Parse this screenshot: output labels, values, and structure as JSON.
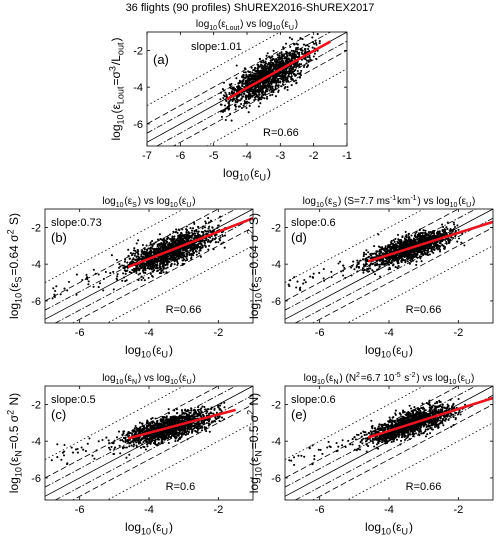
{
  "figure": {
    "suptitle": "36  flights (90 profiles) ShUREX2016-ShUREX2017"
  },
  "colors": {
    "points": "#000000",
    "fit_line": "#e8141e",
    "reference_lines": "#000000",
    "background": "#ffffff"
  },
  "chart_data": [
    {
      "panel": "(a)",
      "type": "scatter",
      "title": "log10(εLout) vs log10(εU)",
      "xlabel": "log10(εU)",
      "ylabel": "log10(εLout=σ^3/Lout)",
      "xlim": [
        -7,
        -1
      ],
      "ylim": [
        -7.2,
        -1.0
      ],
      "xticks": [
        -7,
        -6,
        -5,
        -4,
        -3,
        -2,
        -1
      ],
      "yticks": [
        -6,
        -4,
        -2
      ],
      "annotations": {
        "slope": "slope:1.01",
        "r": "R=0.66"
      },
      "fit": {
        "slope": 1.01,
        "x": [
          -4.6,
          -1.5
        ],
        "y": [
          -4.65,
          -1.52
        ]
      },
      "cloud": {
        "n": 1500,
        "x_mean": -3.4,
        "x_sd": 0.62,
        "x_min": -4.8,
        "x_max": -1.8,
        "resid_sd": 0.45
      },
      "reference_lines": [
        "1:1",
        "±1 decade",
        "±2 decades"
      ],
      "grid": false,
      "box": true
    },
    {
      "panel": "(b)",
      "type": "scatter",
      "title": "log10(εS) vs log10(εU)",
      "xlabel": "log10(εU)",
      "ylabel": "log10(εS=0.64 σ^2 S)",
      "xlim": [
        -7,
        -1
      ],
      "ylim": [
        -7.2,
        -1.0
      ],
      "xticks": [
        -6,
        -4,
        -2
      ],
      "yticks": [
        -6,
        -4,
        -2
      ],
      "annotations": {
        "slope": "slope:0.73",
        "r": "R=0.66"
      },
      "fit": {
        "slope": 0.73,
        "x": [
          -4.6,
          -1.0
        ],
        "y": [
          -4.15,
          -1.5
        ]
      },
      "cloud": {
        "n": 1500,
        "x_mean": -3.4,
        "x_sd": 0.62,
        "x_min": -6.9,
        "x_max": -1.8,
        "resid_sd": 0.38
      },
      "reference_lines": [
        "1:1",
        "±1 decade",
        "±2 decades"
      ],
      "grid": false,
      "box": true
    },
    {
      "panel": "(d)",
      "type": "scatter",
      "title": "log10(εS) (S=7.7 ms-1km-1) vs log10(εU)",
      "xlabel": "log10(εU)",
      "ylabel": "log10(εS=0.64 σ^2 S)",
      "xlim": [
        -7,
        -1
      ],
      "ylim": [
        -7.2,
        -1.0
      ],
      "xticks": [
        -6,
        -4,
        -2
      ],
      "yticks": [
        -6,
        -4,
        -2
      ],
      "annotations": {
        "slope": "slope:0.6",
        "r": "R=0.66"
      },
      "fit": {
        "slope": 0.6,
        "x": [
          -4.6,
          -1.0
        ],
        "y": [
          -3.85,
          -1.7
        ]
      },
      "cloud": {
        "n": 1500,
        "x_mean": -3.4,
        "x_sd": 0.62,
        "x_min": -6.9,
        "x_max": -1.8,
        "resid_sd": 0.32
      },
      "reference_lines": [
        "1:1",
        "±1 decade",
        "±2 decades"
      ],
      "grid": false,
      "box": true
    },
    {
      "panel": "(c)",
      "type": "scatter",
      "title": "log10(εN) vs log10(εU)",
      "xlabel": "log10(εU)",
      "ylabel": "log10(εN=0.5 σ^2 N)",
      "xlim": [
        -7,
        -1
      ],
      "ylim": [
        -7.2,
        -1.0
      ],
      "xticks": [
        -6,
        -4,
        -2
      ],
      "yticks": [
        -6,
        -4,
        -2
      ],
      "annotations": {
        "slope": "slope:0.5",
        "r": "R=0.6"
      },
      "fit": {
        "slope": 0.5,
        "x": [
          -4.6,
          -1.5
        ],
        "y": [
          -3.85,
          -2.3
        ]
      },
      "cloud": {
        "n": 1500,
        "x_mean": -3.4,
        "x_sd": 0.62,
        "x_min": -6.9,
        "x_max": -1.8,
        "resid_sd": 0.32
      },
      "reference_lines": [
        "1:1",
        "±1 decade",
        "±2 decades"
      ],
      "grid": false,
      "box": true
    },
    {
      "panel": "(e)",
      "type": "scatter",
      "title": "log10(εN) (N^2=6.7 10^-5 s^-2) vs log10(εU)",
      "xlabel": "log10(εU)",
      "ylabel": "log10(εN=0.5 σ^2 N)",
      "xlim": [
        -7,
        -1
      ],
      "ylim": [
        -7.2,
        -1.0
      ],
      "xticks": [
        -6,
        -4,
        -2
      ],
      "yticks": [
        -6,
        -4,
        -2
      ],
      "annotations": {
        "slope": "slope:0.6",
        "r": "R=0.66"
      },
      "fit": {
        "slope": 0.6,
        "x": [
          -4.6,
          -1.0
        ],
        "y": [
          -3.8,
          -1.65
        ]
      },
      "cloud": {
        "n": 1500,
        "x_mean": -3.4,
        "x_sd": 0.62,
        "x_min": -6.9,
        "x_max": -1.8,
        "resid_sd": 0.32
      },
      "reference_lines": [
        "1:1",
        "±1 decade",
        "±2 decades"
      ],
      "grid": false,
      "box": true
    }
  ]
}
